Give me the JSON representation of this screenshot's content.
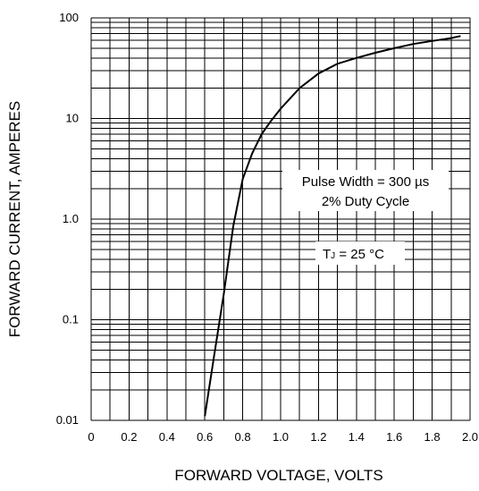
{
  "chart_data": {
    "type": "line",
    "title": "",
    "xlabel": "FORWARD VOLTAGE, VOLTS",
    "ylabel": "FORWARD CURRENT,  AMPERES",
    "xlim": [
      0,
      2.0
    ],
    "ylim": [
      0.01,
      100
    ],
    "yscale": "log",
    "grid": true,
    "x_ticks": [
      "0",
      "0.2",
      "0.4",
      "0.6",
      "0.8",
      "1.0",
      "1.2",
      "1.4",
      "1.6",
      "1.8",
      "2.0"
    ],
    "y_ticks": [
      {
        "value": 0.01,
        "label": "0.01"
      },
      {
        "value": 0.1,
        "label": "0.1"
      },
      {
        "value": 1,
        "label": "1.0"
      },
      {
        "value": 10,
        "label": "10"
      },
      {
        "value": 100,
        "label": "100"
      }
    ],
    "series": [
      {
        "x": [
          0.6,
          0.65,
          0.7,
          0.75,
          0.8,
          0.85,
          0.9,
          0.95,
          1.0,
          1.1,
          1.2,
          1.3,
          1.4,
          1.5,
          1.6,
          1.7,
          1.8,
          1.9,
          1.95
        ],
        "y": [
          0.011,
          0.045,
          0.18,
          0.85,
          2.5,
          4.5,
          7.0,
          9.5,
          12.5,
          20,
          28,
          35,
          40,
          45,
          50,
          55,
          59,
          63,
          66
        ]
      }
    ],
    "annotations": [
      {
        "lines": [
          "Pulse Width = 300 µs",
          "2% Duty Cycle"
        ]
      },
      {
        "lines": [
          "T",
          "J",
          " = 25 °C"
        ]
      }
    ]
  }
}
